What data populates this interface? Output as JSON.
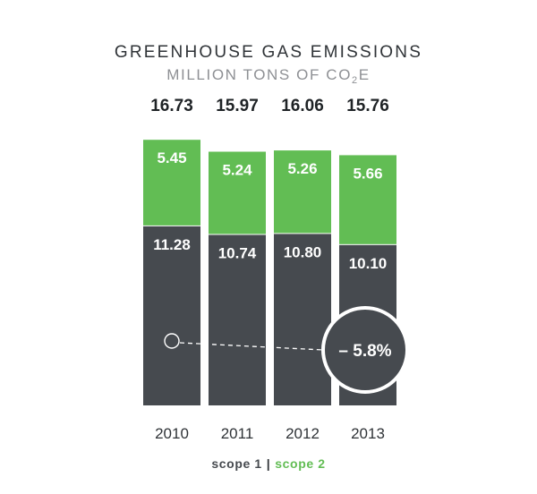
{
  "chart_data": {
    "type": "bar",
    "stacked": true,
    "title": "GREENHOUSE GAS EMISSIONS",
    "subtitle": {
      "prefix": "MILLION TONS OF C",
      "letter_o": "O",
      "subscript": "2",
      "suffix": "E"
    },
    "categories": [
      "2010",
      "2011",
      "2012",
      "2013"
    ],
    "totals": [
      "16.73",
      "15.97",
      "16.06",
      "15.76"
    ],
    "series": [
      {
        "name": "scope 1",
        "values": [
          11.28,
          10.74,
          10.8,
          10.1
        ],
        "labels": [
          "11.28",
          "10.74",
          "10.80",
          "10.10"
        ],
        "color": "#464a4f"
      },
      {
        "name": "scope 2",
        "values": [
          5.45,
          5.24,
          5.26,
          5.66
        ],
        "labels": [
          "5.45",
          "5.24",
          "5.26",
          "5.66"
        ],
        "color": "#62bd54"
      }
    ],
    "annotation": {
      "text": "– 5.8%",
      "from": "2010",
      "to": "2013"
    },
    "legend": {
      "placement": "bottom",
      "separator": "|"
    },
    "colors": {
      "title": "#2f3337",
      "subtitle": "#8e9094",
      "totals": "#1f2326",
      "label_text": "#ffffff",
      "axis_text": "#2f3337"
    }
  }
}
